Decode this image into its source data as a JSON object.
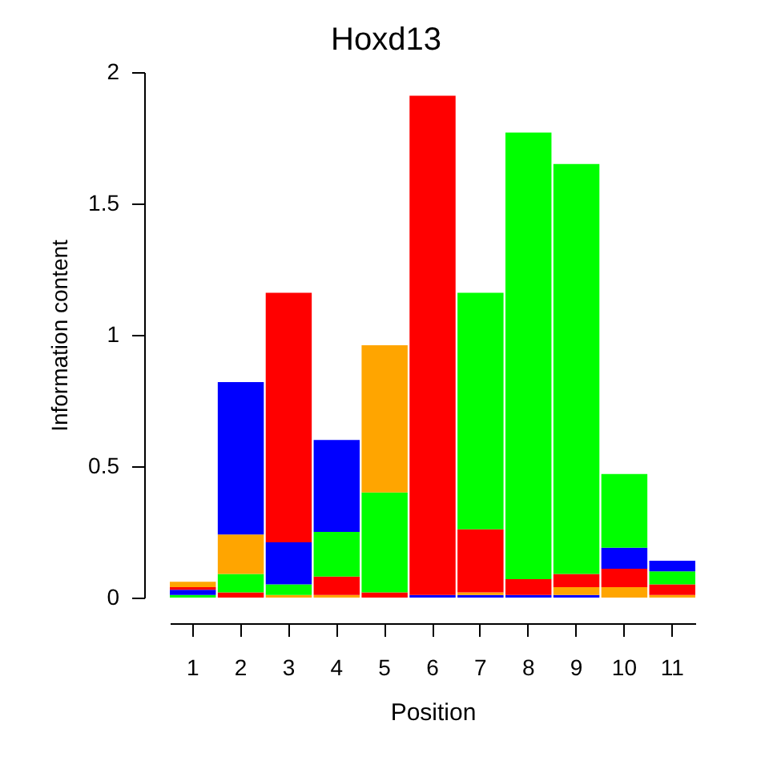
{
  "chart_data": {
    "type": "bar",
    "stacked": true,
    "title": "Hoxd13",
    "xlabel": "Position",
    "ylabel": "Information content",
    "categories": [
      "1",
      "2",
      "3",
      "4",
      "5",
      "6",
      "7",
      "8",
      "9",
      "10",
      "11"
    ],
    "series": [
      {
        "values": [
          0.01,
          0.02,
          0.01,
          0.01,
          null,
          null,
          0.01,
          null,
          0.01,
          0.04,
          0.01
        ],
        "colors": [
          "#00ff00",
          "#ff0000",
          "#ffa500",
          "#ffa500",
          null,
          null,
          "#0000ff",
          null,
          "#0000ff",
          "#ffa500",
          "#ffa500"
        ]
      },
      {
        "values": [
          0.02,
          0.07,
          0.04,
          0.07,
          0.02,
          null,
          0.01,
          0.01,
          0.03,
          0.07,
          0.04
        ],
        "colors": [
          "#0000ff",
          "#00ff00",
          "#00ff00",
          "#ff0000",
          "#ff0000",
          null,
          "#ffa500",
          "#0000ff",
          "#ffa500",
          "#ff0000",
          "#ff0000"
        ]
      },
      {
        "values": [
          0.01,
          0.15,
          0.16,
          0.17,
          0.38,
          0.01,
          0.24,
          0.06,
          0.05,
          0.08,
          0.05
        ],
        "colors": [
          "#ff0000",
          "#ffa500",
          "#0000ff",
          "#00ff00",
          "#00ff00",
          "#0000ff",
          "#ff0000",
          "#ff0000",
          "#ff0000",
          "#0000ff",
          "#00ff00"
        ]
      },
      {
        "values": [
          0.02,
          0.58,
          0.95,
          0.35,
          0.56,
          1.9,
          0.9,
          1.7,
          1.56,
          0.28,
          0.04
        ],
        "colors": [
          "#ffa500",
          "#0000ff",
          "#ff0000",
          "#0000ff",
          "#ffa500",
          "#ff0000",
          "#00ff00",
          "#00ff00",
          "#00ff00",
          "#00ff00",
          "#0000ff"
        ]
      }
    ],
    "ylim": [
      0,
      2
    ],
    "yticks": [
      0,
      0.5,
      1,
      1.5,
      2
    ],
    "grid": false
  }
}
